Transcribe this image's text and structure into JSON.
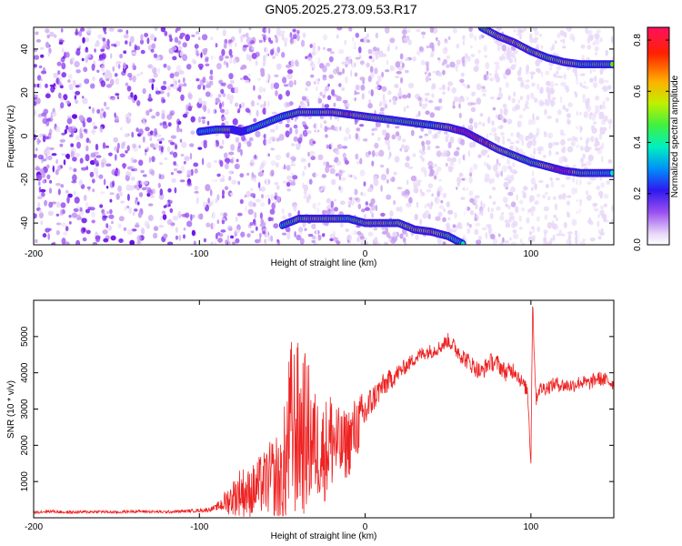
{
  "title": "GN05.2025.273.09.53.R17",
  "colors": {
    "snr_line": "#ee2222",
    "spectrogram_background": "#ffffff",
    "colormap": [
      "#e8d8f8",
      "#c8a0f0",
      "#9a50f0",
      "#6a10e8",
      "#1a2cf0",
      "#00b4f8",
      "#00f0b0",
      "#60f010",
      "#f0f000",
      "#ff9000",
      "#ff2000",
      "#ff1060"
    ]
  },
  "chart_data": [
    {
      "type": "heatmap",
      "name": "spectrogram",
      "xlabel": "Height of straight line (km)",
      "ylabel": "Frequency (Hz)",
      "xlim": [
        -200,
        150
      ],
      "ylim": [
        -50,
        50
      ],
      "xticks": [
        -200,
        -100,
        0,
        100
      ],
      "xtick_labels": [
        "-200",
        "-100",
        "0",
        "100"
      ],
      "yticks": [
        -40,
        -20,
        0,
        20,
        40
      ],
      "ytick_labels": [
        "-40",
        "-20",
        "0",
        "20",
        "40"
      ],
      "colorbar": {
        "label": "Normalized spectral amplitude",
        "range": [
          0,
          0.85
        ],
        "ticks": [
          0.0,
          0.2,
          0.4,
          0.6,
          0.8
        ],
        "tick_labels": [
          "0.0",
          "0.2",
          "0.4",
          "0.6",
          "0.8"
        ]
      },
      "tracks": [
        {
          "points": [
            [
              -100,
              2
            ],
            [
              -90,
              3
            ],
            [
              -80,
              3
            ],
            [
              -75,
              2
            ],
            [
              -70,
              3
            ],
            [
              -60,
              6
            ],
            [
              -50,
              9
            ],
            [
              -40,
              11
            ],
            [
              -30,
              11
            ],
            [
              -20,
              11
            ],
            [
              -10,
              10
            ],
            [
              0,
              9
            ],
            [
              10,
              8
            ],
            [
              20,
              7
            ],
            [
              30,
              6
            ],
            [
              40,
              5
            ],
            [
              50,
              4
            ],
            [
              60,
              2
            ],
            [
              70,
              -2
            ],
            [
              80,
              -6
            ],
            [
              90,
              -9
            ],
            [
              100,
              -12
            ],
            [
              110,
              -14
            ],
            [
              120,
              -16
            ],
            [
              130,
              -17
            ],
            [
              140,
              -17
            ],
            [
              150,
              -17
            ]
          ],
          "intensity": [
            0.25,
            0.3,
            0.45,
            0.5,
            0.35,
            0.3,
            0.3,
            0.45,
            0.4,
            0.45,
            0.55,
            0.45,
            0.4,
            0.35,
            0.4,
            0.35,
            0.45,
            0.7,
            0.6,
            0.45,
            0.4,
            0.35,
            0.45,
            0.75,
            0.35,
            0.35,
            0.3
          ]
        },
        {
          "points": [
            [
              -50,
              -41
            ],
            [
              -40,
              -38
            ],
            [
              -30,
              -38
            ],
            [
              -20,
              -38
            ],
            [
              -10,
              -38
            ],
            [
              0,
              -40
            ],
            [
              10,
              -40
            ],
            [
              20,
              -40
            ],
            [
              30,
              -43
            ],
            [
              40,
              -44
            ],
            [
              50,
              -46
            ],
            [
              60,
              -50
            ]
          ],
          "intensity": [
            0.3,
            0.4,
            0.45,
            0.4,
            0.35,
            0.4,
            0.45,
            0.4,
            0.45,
            0.5,
            0.35,
            0.3
          ]
        },
        {
          "points": [
            [
              70,
              50
            ],
            [
              80,
              46
            ],
            [
              90,
              43
            ],
            [
              100,
              39
            ],
            [
              110,
              36
            ],
            [
              120,
              34
            ],
            [
              130,
              33
            ],
            [
              140,
              33
            ],
            [
              150,
              33
            ]
          ],
          "intensity": [
            0.35,
            0.45,
            0.5,
            0.45,
            0.4,
            0.45,
            0.35,
            0.35,
            0.35
          ]
        }
      ]
    },
    {
      "type": "line",
      "name": "snr",
      "xlabel": "Height of straight line (km)",
      "ylabel": "SNR (10 * v/v)",
      "xlim": [
        -200,
        150
      ],
      "ylim": [
        0,
        6000
      ],
      "xticks": [
        -200,
        -100,
        0,
        100
      ],
      "xtick_labels": [
        "-200",
        "-100",
        "0",
        "100"
      ],
      "yticks": [
        1000,
        2000,
        3000,
        4000,
        5000
      ],
      "ytick_labels": [
        "1000",
        "2000",
        "3000",
        "4000",
        "5000"
      ],
      "x": [
        -200,
        -190,
        -180,
        -170,
        -160,
        -150,
        -140,
        -130,
        -120,
        -110,
        -100,
        -95,
        -90,
        -85,
        -80,
        -75,
        -70,
        -65,
        -60,
        -55,
        -50,
        -45,
        -40,
        -35,
        -30,
        -25,
        -20,
        -15,
        -10,
        -5,
        0,
        5,
        10,
        15,
        20,
        25,
        30,
        35,
        40,
        45,
        50,
        55,
        60,
        65,
        70,
        75,
        80,
        85,
        90,
        95,
        98,
        100,
        101,
        103,
        105,
        110,
        115,
        120,
        125,
        130,
        135,
        140,
        145,
        150
      ],
      "values": [
        150,
        180,
        150,
        160,
        170,
        150,
        180,
        170,
        160,
        180,
        200,
        220,
        280,
        420,
        550,
        750,
        650,
        850,
        1000,
        1100,
        1000,
        2500,
        2400,
        2300,
        2000,
        1800,
        2200,
        1900,
        2100,
        2500,
        2900,
        3300,
        3600,
        3800,
        4000,
        4200,
        4400,
        4550,
        4600,
        4700,
        4900,
        4650,
        4400,
        4200,
        4000,
        4300,
        4250,
        4000,
        4100,
        3700,
        3500,
        1600,
        6000,
        3300,
        3550,
        3600,
        3700,
        3650,
        3650,
        3750,
        3700,
        3850,
        3800,
        3700
      ],
      "noise_amplitude": [
        40,
        40,
        40,
        40,
        40,
        40,
        40,
        40,
        40,
        40,
        50,
        60,
        80,
        300,
        500,
        700,
        700,
        800,
        900,
        1200,
        1500,
        2500,
        2500,
        2200,
        1500,
        1400,
        1500,
        1000,
        1000,
        900,
        600,
        400,
        350,
        300,
        250,
        200,
        200,
        200,
        200,
        200,
        200,
        250,
        250,
        250,
        250,
        250,
        250,
        250,
        250,
        200,
        200,
        300,
        300,
        250,
        200,
        200,
        200,
        200,
        200,
        200,
        200,
        200,
        200,
        200
      ]
    }
  ]
}
